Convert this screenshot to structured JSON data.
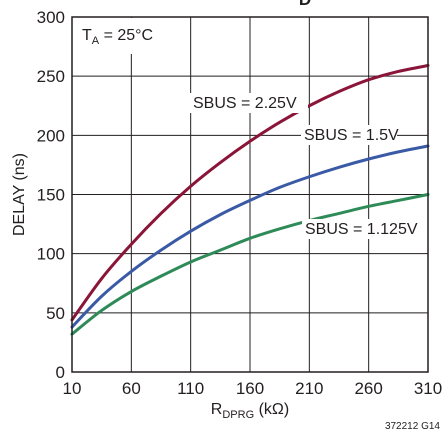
{
  "chart_data": {
    "type": "line",
    "title_partial": "D",
    "xlabel": {
      "main": "R",
      "sub": "DPRG",
      "unit": " (kΩ)"
    },
    "ylabel": "DELAY (ns)",
    "xlim": [
      10,
      310
    ],
    "ylim": [
      0,
      300
    ],
    "x_ticks": [
      10,
      60,
      110,
      160,
      210,
      260,
      310
    ],
    "y_ticks": [
      0,
      50,
      100,
      150,
      200,
      250,
      300
    ],
    "grid": true,
    "annotation": {
      "main": "T",
      "sub": "A",
      "rest": " = 25°C"
    },
    "figure_id": "372212 G14",
    "series": [
      {
        "name": "SBUS = 2.25V",
        "color": "#8b1538",
        "x": [
          10,
          35,
          60,
          85,
          110,
          135,
          160,
          185,
          210,
          235,
          260,
          285,
          310
        ],
        "y": [
          44,
          79,
          108,
          134,
          157,
          177,
          195,
          211,
          225,
          237,
          247,
          254,
          259
        ]
      },
      {
        "name": "SBUS = 1.5V",
        "color": "#3b5aa6",
        "x": [
          10,
          35,
          60,
          85,
          110,
          135,
          160,
          185,
          210,
          235,
          260,
          285,
          310
        ],
        "y": [
          38,
          64,
          85,
          103,
          119,
          133,
          145,
          156,
          165,
          173,
          180,
          186,
          191
        ]
      },
      {
        "name": "SBUS = 1.125V",
        "color": "#2e8b57",
        "x": [
          10,
          35,
          60,
          85,
          110,
          135,
          160,
          185,
          210,
          235,
          260,
          285,
          310
        ],
        "y": [
          32,
          52,
          68,
          81,
          93,
          103,
          113,
          121,
          128,
          134,
          140,
          145,
          150
        ]
      }
    ]
  }
}
